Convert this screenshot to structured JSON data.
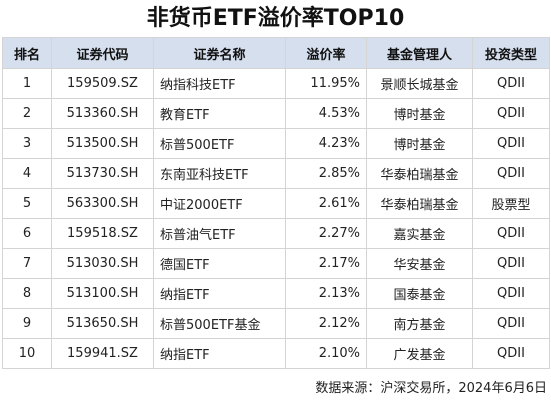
{
  "title": "非货币ETF溢价率TOP10",
  "columns": [
    "排名",
    "证券代码",
    "证券名称",
    "溢价率",
    "基金管理人",
    "投资类型"
  ],
  "rows": [
    {
      "rank": "1",
      "code": "159509.SZ",
      "name": "纳指科技ETF",
      "premium": "11.95%",
      "manager": "景顺长城基金",
      "type": "QDII"
    },
    {
      "rank": "2",
      "code": "513360.SH",
      "name": "教育ETF",
      "premium": "4.53%",
      "manager": "博时基金",
      "type": "QDII"
    },
    {
      "rank": "3",
      "code": "513500.SH",
      "name": "标普500ETF",
      "premium": "4.23%",
      "manager": "博时基金",
      "type": "QDII"
    },
    {
      "rank": "4",
      "code": "513730.SH",
      "name": "东南亚科技ETF",
      "premium": "2.85%",
      "manager": "华泰柏瑞基金",
      "type": "QDII"
    },
    {
      "rank": "5",
      "code": "563300.SH",
      "name": "中证2000ETF",
      "premium": "2.61%",
      "manager": "华泰柏瑞基金",
      "type": "股票型"
    },
    {
      "rank": "6",
      "code": "159518.SZ",
      "name": "标普油气ETF",
      "premium": "2.27%",
      "manager": "嘉实基金",
      "type": "QDII"
    },
    {
      "rank": "7",
      "code": "513030.SH",
      "name": "德国ETF",
      "premium": "2.17%",
      "manager": "华安基金",
      "type": "QDII"
    },
    {
      "rank": "8",
      "code": "513100.SH",
      "name": "纳指ETF",
      "premium": "2.13%",
      "manager": "国泰基金",
      "type": "QDII"
    },
    {
      "rank": "9",
      "code": "513650.SH",
      "name": "标普500ETF基金",
      "premium": "2.12%",
      "manager": "南方基金",
      "type": "QDII"
    },
    {
      "rank": "10",
      "code": "159941.SZ",
      "name": "纳指ETF",
      "premium": "2.10%",
      "manager": "广发基金",
      "type": "QDII"
    }
  ],
  "source": "数据来源：沪深交易所，2024年6月6日",
  "colors": {
    "header_bg": "#d6dfee",
    "border": "#d4d4d4"
  }
}
